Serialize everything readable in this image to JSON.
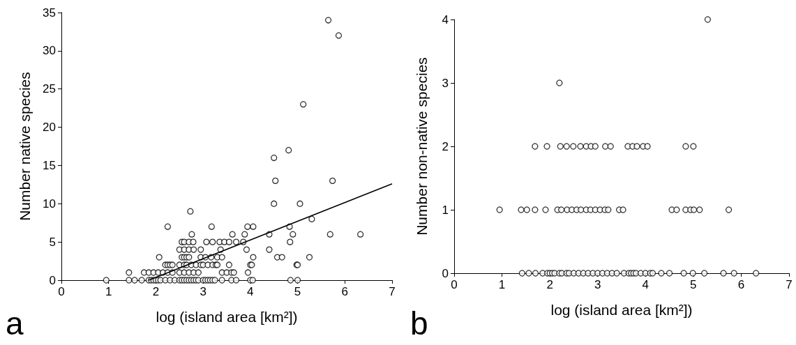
{
  "chart_data": [
    {
      "type": "scatter",
      "xlabel": "log (island area [km²])",
      "ylabel": "Number native species",
      "annotations": [
        "a"
      ],
      "xlim": [
        0,
        7
      ],
      "xticks": [
        0,
        1,
        2,
        3,
        4,
        5,
        6,
        7
      ],
      "ylim": [
        0,
        35
      ],
      "yticks": [
        0,
        5,
        10,
        15,
        20,
        25,
        30,
        35
      ],
      "grid": false,
      "marker": "circle",
      "series": [
        {
          "color": "#000000",
          "x": [
            0.95,
            1.43,
            1.55,
            1.7,
            1.85,
            1.9,
            1.95,
            2.0,
            2.05,
            2.1,
            2.2,
            2.3,
            2.4,
            2.5,
            2.55,
            2.6,
            2.65,
            2.7,
            2.75,
            2.8,
            2.85,
            2.9,
            3.0,
            3.05,
            3.1,
            3.15,
            3.2,
            3.25,
            3.4,
            3.6,
            3.7,
            4.0,
            4.05,
            4.85,
            5.0,
            1.43,
            1.75,
            1.85,
            1.95,
            2.05,
            2.15,
            2.25,
            2.35,
            2.5,
            2.6,
            2.7,
            2.8,
            2.9,
            3.4,
            3.5,
            3.6,
            3.65,
            3.95,
            2.2,
            2.25,
            2.3,
            2.35,
            2.5,
            2.6,
            2.65,
            2.75,
            2.85,
            2.95,
            3.0,
            3.1,
            3.2,
            3.27,
            3.3,
            3.55,
            4.0,
            4.03,
            4.98,
            5.0,
            2.07,
            2.55,
            2.6,
            2.65,
            2.7,
            2.95,
            3.05,
            3.17,
            3.3,
            3.4,
            4.06,
            4.57,
            4.67,
            5.25,
            2.5,
            2.6,
            2.7,
            2.8,
            2.95,
            3.37,
            3.92,
            4.4,
            2.55,
            2.6,
            2.7,
            2.79,
            3.07,
            3.2,
            3.35,
            3.45,
            3.55,
            3.7,
            3.85,
            4.84,
            2.76,
            3.62,
            3.88,
            4.4,
            4.9,
            5.69,
            6.33,
            2.25,
            3.18,
            3.94,
            4.06,
            4.83,
            5.3,
            2.73,
            4.5,
            5.05,
            4.53,
            5.74,
            4.5,
            4.81,
            5.12,
            5.87,
            5.65
          ],
          "values": [
            0,
            0,
            0,
            0,
            0,
            0,
            0,
            0,
            0,
            0,
            0,
            0,
            0,
            0,
            0,
            0,
            0,
            0,
            0,
            0,
            0,
            0,
            0,
            0,
            0,
            0,
            0,
            0,
            0,
            0,
            0,
            0,
            0,
            0,
            0,
            1,
            1,
            1,
            1,
            1,
            1,
            1,
            1,
            1,
            1,
            1,
            1,
            1,
            1,
            1,
            1,
            1,
            1,
            2,
            2,
            2,
            2,
            2,
            2,
            2,
            2,
            2,
            2,
            2,
            2,
            2,
            2,
            2,
            2,
            2,
            2,
            2,
            2,
            3,
            3,
            3,
            3,
            3,
            3,
            3,
            3,
            3,
            3,
            3,
            3,
            3,
            3,
            4,
            4,
            4,
            4,
            4,
            4,
            4,
            4,
            5,
            5,
            5,
            5,
            5,
            5,
            5,
            5,
            5,
            5,
            5,
            5,
            6,
            6,
            6,
            6,
            6,
            6,
            6,
            7,
            7,
            7,
            7,
            7,
            8,
            9,
            10,
            10,
            13,
            13,
            16,
            17,
            23,
            32,
            34
          ]
        },
        {
          "type": "line",
          "color": "#000000",
          "marker": "none",
          "x": [
            1.85,
            7
          ],
          "values": [
            0,
            12.6
          ]
        }
      ]
    },
    {
      "type": "scatter",
      "xlabel": "log (island area [km²])",
      "ylabel": "Number non-native species",
      "annotations": [
        "b"
      ],
      "xlim": [
        0,
        7
      ],
      "xticks": [
        0,
        1,
        2,
        3,
        4,
        5,
        6,
        7
      ],
      "ylim": [
        0,
        4
      ],
      "yticks": [
        0,
        1,
        2,
        3,
        4
      ],
      "grid": false,
      "marker": "circle",
      "series": [
        {
          "color": "#000000",
          "x": [
            1.42,
            1.56,
            1.7,
            1.85,
            1.95,
            2.0,
            2.05,
            2.1,
            2.2,
            2.25,
            2.35,
            2.4,
            2.5,
            2.6,
            2.7,
            2.8,
            2.9,
            3.0,
            3.1,
            3.2,
            3.3,
            3.4,
            3.55,
            3.65,
            3.7,
            3.75,
            3.8,
            3.9,
            4.0,
            4.1,
            4.15,
            4.33,
            4.5,
            4.8,
            4.99,
            5.23,
            5.63,
            5.85,
            6.31,
            0.95,
            1.4,
            1.52,
            1.69,
            1.91,
            2.16,
            2.24,
            2.36,
            2.46,
            2.56,
            2.65,
            2.76,
            2.85,
            2.95,
            3.05,
            3.15,
            3.22,
            3.45,
            3.53,
            4.55,
            4.65,
            4.84,
            4.94,
            5.01,
            5.13,
            5.74,
            1.69,
            1.94,
            2.22,
            2.35,
            2.49,
            2.64,
            2.76,
            2.86,
            2.95,
            3.16,
            3.27,
            3.63,
            3.73,
            3.82,
            3.95,
            4.04,
            4.84,
            5.0,
            2.2,
            5.3
          ],
          "values": [
            0,
            0,
            0,
            0,
            0,
            0,
            0,
            0,
            0,
            0,
            0,
            0,
            0,
            0,
            0,
            0,
            0,
            0,
            0,
            0,
            0,
            0,
            0,
            0,
            0,
            0,
            0,
            0,
            0,
            0,
            0,
            0,
            0,
            0,
            0,
            0,
            0,
            0,
            0,
            1,
            1,
            1,
            1,
            1,
            1,
            1,
            1,
            1,
            1,
            1,
            1,
            1,
            1,
            1,
            1,
            1,
            1,
            1,
            1,
            1,
            1,
            1,
            1,
            1,
            1,
            2,
            2,
            2,
            2,
            2,
            2,
            2,
            2,
            2,
            2,
            2,
            2,
            2,
            2,
            2,
            2,
            2,
            2,
            3,
            4
          ]
        }
      ]
    }
  ]
}
